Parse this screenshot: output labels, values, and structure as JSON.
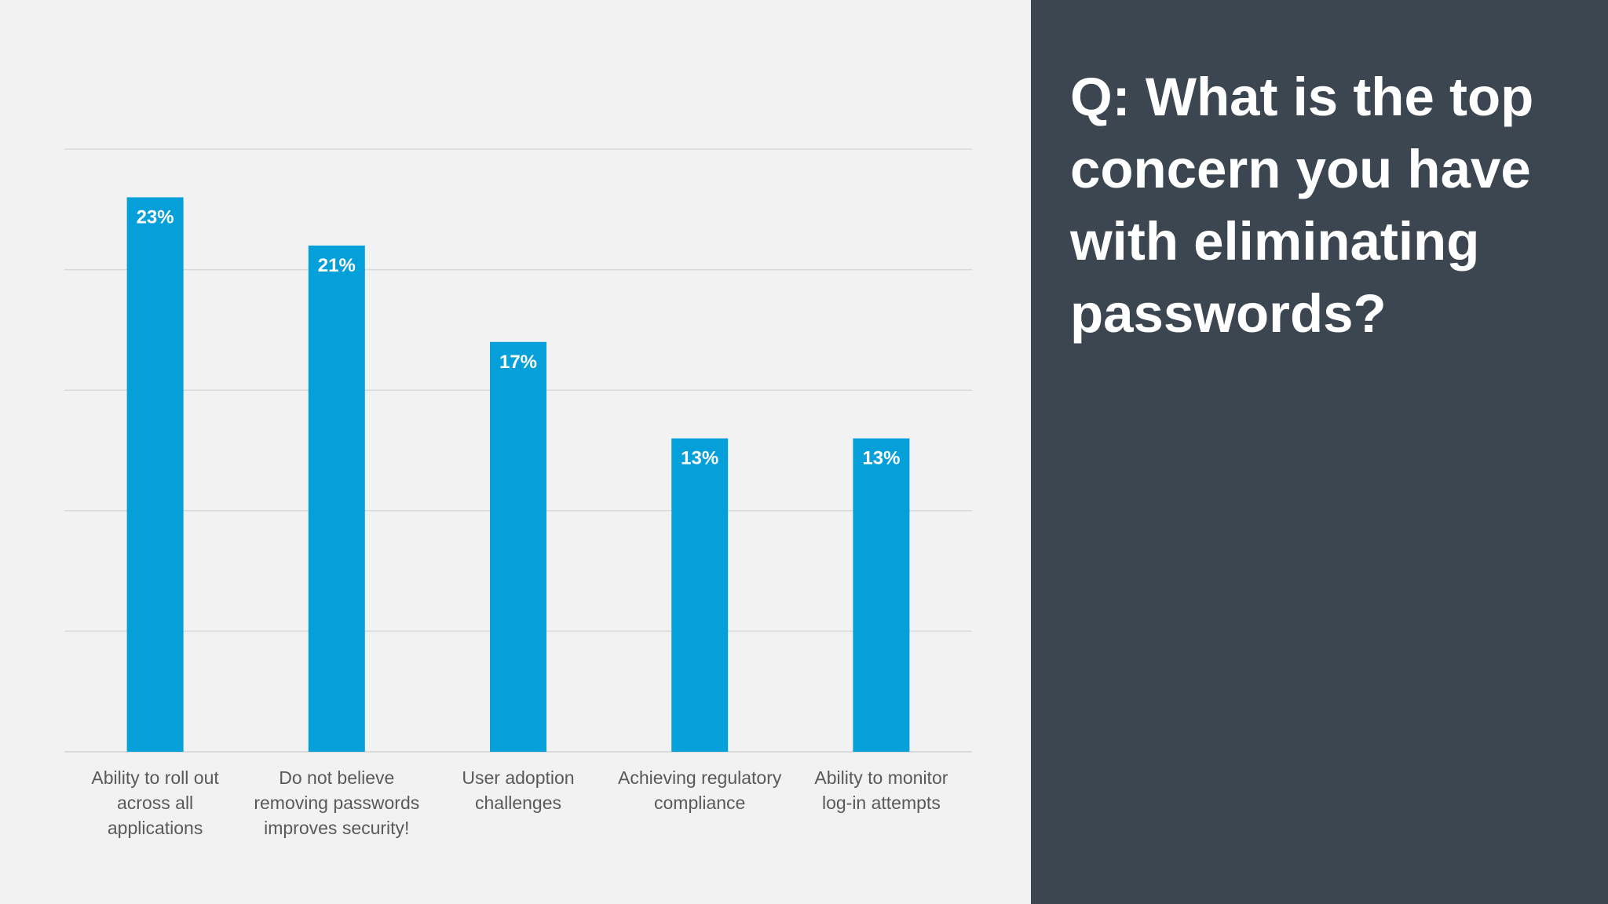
{
  "question": "Q: What is the top concern you have with eliminating passwords?",
  "colors": {
    "bar": "#059fda",
    "panel": "#3c4650",
    "background": "#f2f2f3",
    "gridline": "#d9d9d9",
    "label": "#595959"
  },
  "chart_data": {
    "type": "bar",
    "categories": [
      [
        "Ability to roll  out",
        "across all",
        "applications"
      ],
      [
        "Do not believe",
        "removing passwords",
        "improves security!"
      ],
      [
        "User adoption",
        "challenges"
      ],
      [
        "Achieving regulatory",
        "compliance"
      ],
      [
        "Ability to monitor",
        "log-in attempts"
      ]
    ],
    "values": [
      23,
      21,
      17,
      13,
      13
    ],
    "value_labels": [
      "23%",
      "21%",
      "17%",
      "13%",
      "13%"
    ],
    "ylim": [
      0,
      25
    ],
    "gridlines": [
      0,
      5,
      10,
      15,
      20,
      25
    ],
    "y_tick_labels_shown": false,
    "legend": "none",
    "grid": true
  }
}
